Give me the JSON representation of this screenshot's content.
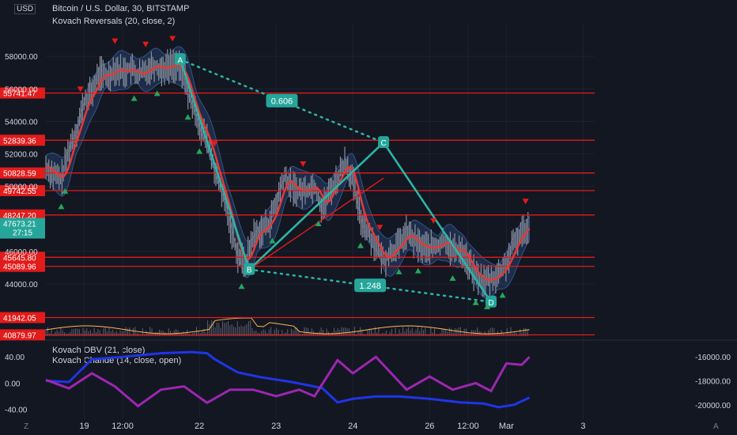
{
  "header": {
    "currency": "USD",
    "main_title": "Bitcoin / U.S. Dollar, 30, BITSTAMP",
    "main_indicator": "Kovach Reversals (20, close, 2)",
    "sub_indicator_1": "Kovach OBV (21, close)",
    "sub_indicator_2": "Kovach Chande (14, close, open)"
  },
  "footer": {
    "left_icon": "Z",
    "right_icon": "A"
  },
  "chart_data": [
    {
      "type": "line",
      "panel": "price",
      "x_ticks": [
        {
          "label": "19",
          "t": 0.5
        },
        {
          "label": "12:00",
          "t": 1
        },
        {
          "label": "22",
          "t": 2
        },
        {
          "label": "23",
          "t": 3
        },
        {
          "label": "24",
          "t": 4
        },
        {
          "label": "26",
          "t": 5
        },
        {
          "label": "12:00",
          "t": 5.5
        },
        {
          "label": "Mar",
          "t": 6
        },
        {
          "label": "3",
          "t": 7
        }
      ],
      "y_ticks": [
        "58000.00",
        "56000.00",
        "54000.00",
        "52000.00",
        "50000.00",
        "46000.00",
        "44000.00"
      ],
      "ylim": [
        40800,
        60000
      ],
      "horizontal_levels": [
        {
          "label": "55741.47",
          "value": 55741.47
        },
        {
          "label": "52839.36",
          "value": 52839.36
        },
        {
          "label": "50828.59",
          "value": 50828.59
        },
        {
          "label": "49742.55",
          "value": 49742.55
        },
        {
          "label": "48247.20",
          "value": 48247.2
        },
        {
          "label": "45645.80",
          "value": 45645.8
        },
        {
          "label": "45089.96",
          "value": 45089.96
        },
        {
          "label": "41942.05",
          "value": 41942.05
        },
        {
          "label": "40879.97",
          "value": 40879.97
        }
      ],
      "current_price": {
        "label": "47673.21",
        "countdown": "27:15",
        "value": 47673.21
      },
      "close_series": [
        [
          0.0,
          51200
        ],
        [
          0.1,
          50700
        ],
        [
          0.2,
          50400
        ],
        [
          0.3,
          52300
        ],
        [
          0.4,
          53500
        ],
        [
          0.5,
          55200
        ],
        [
          0.6,
          55800
        ],
        [
          0.7,
          57000
        ],
        [
          0.8,
          56700
        ],
        [
          0.9,
          57300
        ],
        [
          1.0,
          57000
        ],
        [
          1.1,
          57300
        ],
        [
          1.2,
          56800
        ],
        [
          1.3,
          57100
        ],
        [
          1.4,
          57500
        ],
        [
          1.5,
          57200
        ],
        [
          1.6,
          57400
        ],
        [
          1.7,
          57500
        ],
        [
          1.8,
          56800
        ],
        [
          1.9,
          55000
        ],
        [
          2.0,
          53800
        ],
        [
          2.1,
          52800
        ],
        [
          2.2,
          51000
        ],
        [
          2.3,
          49500
        ],
        [
          2.4,
          47700
        ],
        [
          2.5,
          45800
        ],
        [
          2.6,
          45200
        ],
        [
          2.7,
          47000
        ],
        [
          2.8,
          47300
        ],
        [
          2.9,
          47700
        ],
        [
          3.0,
          48900
        ],
        [
          3.1,
          50600
        ],
        [
          3.2,
          50000
        ],
        [
          3.3,
          49700
        ],
        [
          3.4,
          49800
        ],
        [
          3.5,
          50100
        ],
        [
          3.6,
          48600
        ],
        [
          3.7,
          49700
        ],
        [
          3.8,
          50500
        ],
        [
          3.9,
          51600
        ],
        [
          4.0,
          50300
        ],
        [
          4.1,
          48000
        ],
        [
          4.2,
          47200
        ],
        [
          4.3,
          46300
        ],
        [
          4.4,
          45400
        ],
        [
          4.5,
          46000
        ],
        [
          4.6,
          46400
        ],
        [
          4.7,
          47200
        ],
        [
          4.8,
          46600
        ],
        [
          4.9,
          46300
        ],
        [
          5.0,
          46200
        ],
        [
          5.1,
          46300
        ],
        [
          5.2,
          46700
        ],
        [
          5.3,
          46000
        ],
        [
          5.4,
          46200
        ],
        [
          5.5,
          45300
        ],
        [
          5.6,
          44500
        ],
        [
          5.7,
          44200
        ],
        [
          5.8,
          44300
        ],
        [
          5.9,
          44600
        ],
        [
          6.0,
          45300
        ],
        [
          6.1,
          46500
        ],
        [
          6.2,
          47200
        ],
        [
          6.3,
          47700
        ]
      ],
      "pattern": {
        "points": [
          {
            "label": "A",
            "t": 1.75,
            "value": 57800
          },
          {
            "label": "B",
            "t": 2.65,
            "value": 44900
          },
          {
            "label": "C",
            "t": 4.4,
            "value": 52700
          },
          {
            "label": "D",
            "t": 5.8,
            "value": 42900
          }
        ],
        "ratios": [
          {
            "label": "0.606",
            "between": [
              "A",
              "C"
            ]
          },
          {
            "label": "1.248",
            "between": [
              "B",
              "D"
            ]
          }
        ]
      }
    },
    {
      "type": "line",
      "panel": "oscillator",
      "y_ticks_left": [
        "40.00",
        "0.00",
        "-40.00"
      ],
      "y_ticks_right": [
        "-16000.00",
        "-18000.00",
        "-20000.00"
      ],
      "ylim_left": [
        -55,
        62
      ],
      "ylim_right": [
        -21200,
        -14800
      ],
      "series": [
        {
          "name": "Kovach OBV",
          "axis": "right",
          "color": "#1f35e8",
          "values": [
            [
              0.0,
              -18000
            ],
            [
              0.3,
              -18100
            ],
            [
              0.6,
              -16200
            ],
            [
              1.0,
              -16000
            ],
            [
              1.5,
              -15700
            ],
            [
              1.9,
              -15600
            ],
            [
              2.1,
              -15700
            ],
            [
              2.2,
              -16200
            ],
            [
              2.5,
              -17300
            ],
            [
              2.8,
              -17700
            ],
            [
              3.2,
              -18100
            ],
            [
              3.6,
              -18600
            ],
            [
              3.8,
              -19800
            ],
            [
              4.0,
              -19500
            ],
            [
              4.3,
              -19300
            ],
            [
              4.6,
              -19300
            ],
            [
              5.0,
              -19500
            ],
            [
              5.4,
              -19800
            ],
            [
              5.7,
              -19900
            ],
            [
              5.9,
              -20200
            ],
            [
              6.1,
              -20000
            ],
            [
              6.3,
              -19400
            ]
          ]
        },
        {
          "name": "Kovach Chande",
          "axis": "left",
          "color": "#9c27b0",
          "values": [
            [
              0.0,
              5
            ],
            [
              0.3,
              -8
            ],
            [
              0.6,
              15
            ],
            [
              0.9,
              -5
            ],
            [
              1.2,
              -35
            ],
            [
              1.5,
              -10
            ],
            [
              1.8,
              -5
            ],
            [
              2.1,
              -30
            ],
            [
              2.4,
              -10
            ],
            [
              2.7,
              -10
            ],
            [
              3.0,
              -20
            ],
            [
              3.3,
              -10
            ],
            [
              3.5,
              -20
            ],
            [
              3.8,
              35
            ],
            [
              4.0,
              15
            ],
            [
              4.3,
              40
            ],
            [
              4.5,
              15
            ],
            [
              4.7,
              -10
            ],
            [
              5.0,
              10
            ],
            [
              5.3,
              -10
            ],
            [
              5.6,
              0
            ],
            [
              5.8,
              -12
            ],
            [
              6.0,
              30
            ],
            [
              6.2,
              28
            ],
            [
              6.3,
              40
            ]
          ]
        }
      ]
    }
  ],
  "colors": {
    "background": "#131722",
    "level_line": "#e21b1b",
    "teal": "#26a69a",
    "pattern_cyan": "#2bb5a5",
    "ma_red": "#e53935",
    "band_fill": "#2a4a7a",
    "candle_gray": "#8a8f9c",
    "volume_orange": "#ffb74d"
  }
}
